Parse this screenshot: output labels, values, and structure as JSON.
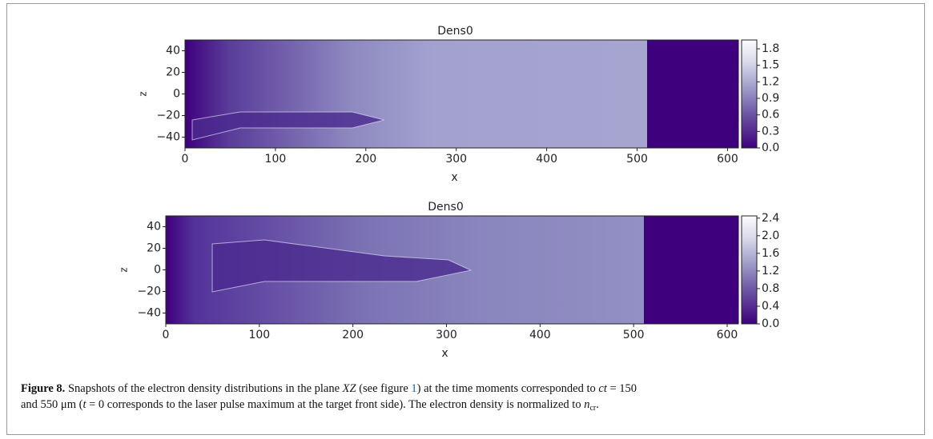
{
  "chart_data": [
    {
      "type": "heatmap",
      "title": "Dens0",
      "xlabel": "x",
      "ylabel": "z",
      "xlim": [
        0,
        612
      ],
      "xticks": [
        0,
        100,
        200,
        300,
        400,
        500,
        600
      ],
      "ylim": [
        -50,
        50
      ],
      "yticks": [
        {
          "value": -40,
          "label": "−40"
        },
        {
          "value": -20,
          "label": "−20"
        },
        0,
        20,
        40
      ],
      "clim": [
        0,
        1.96
      ],
      "cticks": [
        {
          "value": 0,
          "label": "0.0"
        },
        0.3,
        0.6,
        0.9,
        1.2,
        1.5,
        1.8
      ]
    },
    {
      "type": "heatmap",
      "title": "Dens0",
      "xlabel": "x",
      "ylabel": "z",
      "xlim": [
        0,
        612
      ],
      "xticks": [
        0,
        100,
        200,
        300,
        400,
        500,
        600
      ],
      "ylim": [
        -50,
        50
      ],
      "yticks": [
        {
          "value": -40,
          "label": "−40"
        },
        {
          "value": -20,
          "label": "−20"
        },
        0,
        20,
        40
      ],
      "clim": [
        0,
        2.45
      ],
      "cticks": [
        {
          "value": 0,
          "label": "0.0"
        },
        0.4,
        0.8,
        1.2,
        1.6,
        {
          "value": 2,
          "label": "2.0"
        },
        2.4
      ]
    }
  ],
  "caption": {
    "lines": [
      [
        {
          "text": "Figure 8.",
          "style": "b"
        },
        {
          "text": " Snapshots of the electron density distributions in the plane "
        },
        {
          "text": "XZ",
          "style": "i"
        },
        {
          "text": " (see figure "
        },
        {
          "text": "1",
          "style": "link"
        },
        {
          "text": ") at the time moments corresponded to "
        },
        {
          "text": "ct",
          "style": "i"
        },
        {
          "text": " = 150"
        }
      ],
      [
        {
          "text": "and 550 μm ("
        },
        {
          "text": "t",
          "style": "i"
        },
        {
          "text": " = 0 corresponds to the laser pulse maximum at the target front side). The electron density is normalized to "
        },
        {
          "text": "n",
          "style": "i"
        },
        {
          "text": "cr",
          "style": "sub"
        },
        {
          "text": "."
        }
      ]
    ]
  }
}
